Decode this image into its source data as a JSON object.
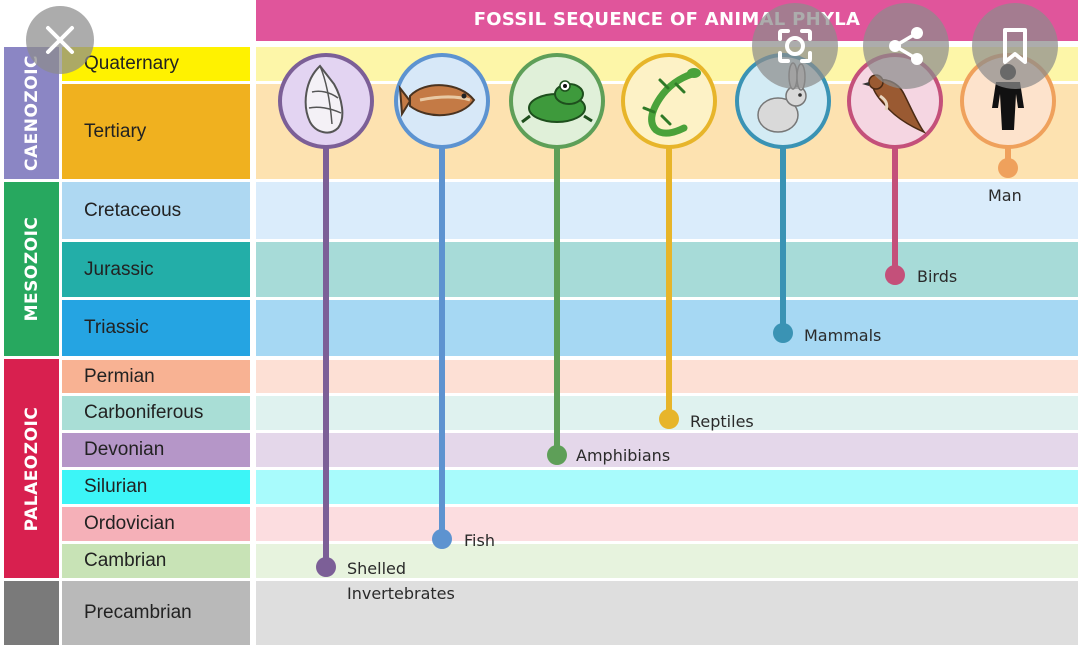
{
  "title": "FOSSIL SEQUENCE OF ANIMAL PHYLA",
  "eras": [
    {
      "label": "CAENOZOIC",
      "color": "#8b86c4"
    },
    {
      "label": "MESOZOIC",
      "color": "#27a85f"
    },
    {
      "label": "PALAEOZOIC",
      "color": "#d8204f"
    },
    {
      "label": "",
      "color": "#7a7a7a"
    }
  ],
  "periods": [
    {
      "label": "Quaternary",
      "color": "#fff200",
      "band": "#fdf6a8"
    },
    {
      "label": "Tertiary",
      "color": "#f0b11f",
      "band": "#fde2b0"
    },
    {
      "label": "Cretaceous",
      "color": "#aed8f2",
      "band": "#daecfb"
    },
    {
      "label": "Jurassic",
      "color": "#23aea8",
      "band": "#a7dbd8"
    },
    {
      "label": "Triassic",
      "color": "#25a4e2",
      "band": "#a6d8f3"
    },
    {
      "label": "Permian",
      "color": "#f8b293",
      "band": "#fde0d5"
    },
    {
      "label": "Carboniferous",
      "color": "#a9ded6",
      "band": "#dff2ef"
    },
    {
      "label": "Devonian",
      "color": "#b596c8",
      "band": "#e4d7ea"
    },
    {
      "label": "Silurian",
      "color": "#3cf5f7",
      "band": "#a8fbfc"
    },
    {
      "label": "Ordovician",
      "color": "#f5b0b8",
      "band": "#fcdde0"
    },
    {
      "label": "Cambrian",
      "color": "#c8e3b6",
      "band": "#e7f3de"
    },
    {
      "label": "Precambrian",
      "color": "#b9b9b9",
      "band": "#dedede"
    }
  ],
  "phyla": [
    {
      "label": "Shelled",
      "label2": "Invertebrates",
      "icon": "shell-icon",
      "color": "#7c5f97",
      "ring": "#7c5f97",
      "fill": "#e3d4f2"
    },
    {
      "label": "Fish",
      "icon": "fish-icon",
      "color": "#5d93d0",
      "ring": "#5d93d0",
      "fill": "#d7e8f8"
    },
    {
      "label": "Amphibians",
      "icon": "frog-icon",
      "color": "#5e9f58",
      "ring": "#5e9f58",
      "fill": "#e0f0d9"
    },
    {
      "label": "Reptiles",
      "icon": "lizard-icon",
      "color": "#e7b52a",
      "ring": "#e7b52a",
      "fill": "#fdf2c6"
    },
    {
      "label": "Mammals",
      "icon": "rabbit-icon",
      "color": "#3a93b4",
      "ring": "#3a93b4",
      "fill": "#d3ebf4"
    },
    {
      "label": "Birds",
      "icon": "bird-icon",
      "color": "#c4507a",
      "ring": "#c4507a",
      "fill": "#f5d6e2"
    },
    {
      "label": "Man",
      "icon": "human-icon",
      "color": "#efa15c",
      "ring": "#efa15c",
      "fill": "#fde3cc"
    }
  ],
  "controls": [
    {
      "name": "close-button",
      "icon": "close-icon"
    },
    {
      "name": "lens-button",
      "icon": "lens-icon"
    },
    {
      "name": "share-button",
      "icon": "share-icon"
    },
    {
      "name": "bookmark-button",
      "icon": "bookmark-icon"
    }
  ]
}
